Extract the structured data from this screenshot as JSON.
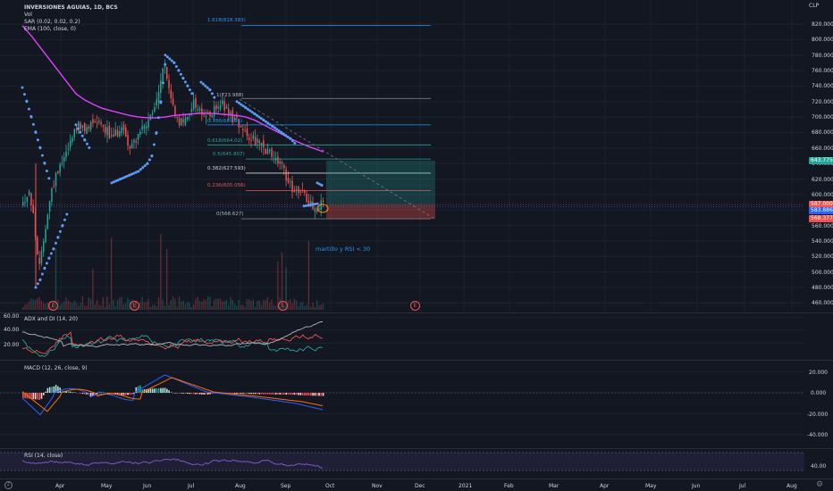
{
  "main": {
    "legend": {
      "title": "INVERSIONES AGUIAS, 1D, BCS",
      "vol": "Vol",
      "sar": "SAR (0.02, 0.02, 0.2)",
      "ema": "EMA (100, close, 0)"
    },
    "currency": "CLP",
    "price_ticks": [
      "820.000",
      "800.000",
      "780.000",
      "760.000",
      "740.000",
      "720.000",
      "700.000",
      "680.000",
      "660.000",
      "640.000",
      "620.000",
      "600.000",
      "580.000",
      "560.000",
      "540.000",
      "520.000",
      "500.000",
      "480.000",
      "460.000"
    ],
    "tags": [
      {
        "label": "643.775",
        "color": "#26a69a"
      },
      {
        "label": "587.000",
        "color": "#ef5350"
      },
      {
        "label": "583.886",
        "color": "#2962ff"
      },
      {
        "label": "568.377",
        "color": "#ef5350"
      }
    ],
    "fib_levels": [
      {
        "label": "1.618(818.383)",
        "color": "#2196f3"
      },
      {
        "label": "1(723.988)",
        "color": "#b2b5be"
      },
      {
        "label": "0.786(689.85)",
        "color": "#2196f3"
      },
      {
        "label": "0.618(664.02)",
        "color": "#26a69a"
      },
      {
        "label": "0.5(645.807)",
        "color": "#26a69a"
      },
      {
        "label": "0.382(627.593)",
        "color": "#d1d4dc"
      },
      {
        "label": "0.236(605.056)",
        "color": "#ef5350"
      },
      {
        "label": "0(568.627)",
        "color": "#b2b5be"
      }
    ],
    "annotation": "martillo  y RSI < 30",
    "earnings_badge": "E"
  },
  "adx": {
    "legend": "ADX and DI (14, 20)",
    "ticks": [
      "60.00",
      "40.00",
      "20.00"
    ]
  },
  "macd": {
    "legend": "MACD (12, 26, close, 9)",
    "ticks": [
      "20.000",
      "0.000",
      "-20.000",
      "-40.000"
    ]
  },
  "rsi": {
    "legend": "RSI (14, close)",
    "ticks": [
      "40.00"
    ]
  },
  "time_axis": [
    "Apr",
    "May",
    "Jun",
    "Jul",
    "Aug",
    "Sep",
    "Oct",
    "Nov",
    "Dec",
    "2021",
    "Feb",
    "Mar",
    "Apr",
    "May",
    "Jun",
    "Jul",
    "Aug"
  ],
  "corner": {
    "settings_icon": "gear-icon",
    "timezone_icon": "clock-icon"
  },
  "colors": {
    "background": "#131722",
    "up": "#26a69a",
    "down": "#ef5350",
    "sar": "#5b9cf6",
    "ema": "#e040fb",
    "rsi": "#7e57c2"
  }
}
